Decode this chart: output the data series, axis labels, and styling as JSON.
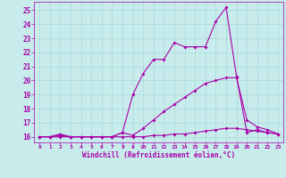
{
  "xlabel": "Windchill (Refroidissement éolien,°C)",
  "bg_color": "#c8ecec",
  "grid_color": "#a8d8d8",
  "line_color": "#aa00aa",
  "xlim": [
    -0.5,
    23.5
  ],
  "ylim": [
    15.6,
    25.6
  ],
  "yticks": [
    16,
    17,
    18,
    19,
    20,
    21,
    22,
    23,
    24,
    25
  ],
  "xticks": [
    0,
    1,
    2,
    3,
    4,
    5,
    6,
    7,
    8,
    9,
    10,
    11,
    12,
    13,
    14,
    15,
    16,
    17,
    18,
    19,
    20,
    21,
    22,
    23
  ],
  "line1_x": [
    0,
    1,
    2,
    3,
    4,
    5,
    6,
    7,
    8,
    9,
    10,
    11,
    12,
    13,
    14,
    15,
    16,
    17,
    18,
    19,
    20,
    21,
    22,
    23
  ],
  "line1_y": [
    16.0,
    16.0,
    16.1,
    16.0,
    16.0,
    16.0,
    16.0,
    16.0,
    16.3,
    19.0,
    20.5,
    21.5,
    21.5,
    22.7,
    22.4,
    22.4,
    22.4,
    24.2,
    25.2,
    20.3,
    16.3,
    16.5,
    16.3,
    16.2
  ],
  "line2_x": [
    0,
    1,
    2,
    3,
    4,
    5,
    6,
    7,
    8,
    9,
    10,
    11,
    12,
    13,
    14,
    15,
    16,
    17,
    18,
    19,
    20,
    21,
    22,
    23
  ],
  "line2_y": [
    16.0,
    16.0,
    16.2,
    16.0,
    16.0,
    16.0,
    16.0,
    16.0,
    16.3,
    16.1,
    16.6,
    17.2,
    17.8,
    18.3,
    18.8,
    19.3,
    19.8,
    20.0,
    20.2,
    20.2,
    17.2,
    16.7,
    16.5,
    16.2
  ],
  "line3_x": [
    0,
    1,
    2,
    3,
    4,
    5,
    6,
    7,
    8,
    9,
    10,
    11,
    12,
    13,
    14,
    15,
    16,
    17,
    18,
    19,
    20,
    21,
    22,
    23
  ],
  "line3_y": [
    16.0,
    16.0,
    16.0,
    16.0,
    16.0,
    16.0,
    16.0,
    16.0,
    16.0,
    16.0,
    16.0,
    16.1,
    16.1,
    16.2,
    16.2,
    16.3,
    16.4,
    16.5,
    16.6,
    16.6,
    16.5,
    16.4,
    16.3,
    16.2
  ]
}
